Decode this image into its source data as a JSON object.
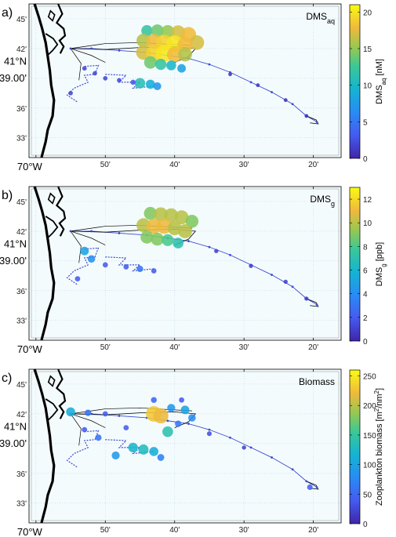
{
  "panels": [
    {
      "id": "a",
      "label": "a)",
      "title": "DMS",
      "title_sub": "aq",
      "colorbar": {
        "label_main": "DMS",
        "label_sub": "aq",
        "label_units": " [nM]",
        "min": 0,
        "max": 21,
        "ticks": [
          "0",
          "5",
          "10",
          "15",
          "20"
        ],
        "tick_values": [
          0,
          5,
          10,
          15,
          20
        ]
      },
      "value_max": 21
    },
    {
      "id": "b",
      "label": "b)",
      "title": "DMS",
      "title_sub": "g",
      "colorbar": {
        "label_main": "DMS",
        "label_sub": "g",
        "label_units": " [ppb]",
        "min": 0,
        "max": 13,
        "ticks": [
          "0",
          "2",
          "4",
          "6",
          "8",
          "10",
          "12"
        ],
        "tick_values": [
          0,
          2,
          4,
          6,
          8,
          10,
          12
        ]
      },
      "value_max": 13
    },
    {
      "id": "c",
      "label": "c)",
      "title": "Biomass",
      "title_sub": "",
      "colorbar": {
        "label_main": "Zooplankton biomass [m",
        "label_sub": "",
        "label_units": "2/nm2]",
        "min": 0,
        "max": 260,
        "ticks": [
          "0",
          "50",
          "100",
          "150",
          "200",
          "250"
        ],
        "tick_values": [
          0,
          50,
          100,
          150,
          200,
          250
        ]
      },
      "value_max": 260
    }
  ],
  "lat_ticks": [
    "45'",
    "42'",
    "39.00'",
    "36'",
    "33'"
  ],
  "lat_values": [
    45,
    42,
    39,
    36,
    33
  ],
  "lat_degree_label": "41°N",
  "lon_ticks": [
    "70°W",
    "50'",
    "40'",
    "30'",
    "20'"
  ],
  "lon_values": [
    60,
    50,
    40,
    30,
    20
  ],
  "lat_range": [
    31,
    46.5
  ],
  "lon_range": [
    61,
    16
  ],
  "colors": {
    "ocean": "#f4fbfd",
    "grid": "#bcd6e6",
    "coast": "#000000",
    "track": "#3a4ad0"
  },
  "track_points": [
    [
      55,
      42
    ],
    [
      52,
      42
    ],
    [
      48,
      41.8
    ],
    [
      44,
      41.6
    ],
    [
      41,
      41.3
    ],
    [
      38,
      41.0
    ],
    [
      35,
      40.4
    ],
    [
      32,
      39.6
    ],
    [
      29,
      38.6
    ],
    [
      26,
      37.6
    ],
    [
      23,
      36.4
    ],
    [
      21,
      35.2
    ],
    [
      19.5,
      34.6
    ]
  ],
  "bubbles_a": [
    {
      "lon": 44,
      "lat": 43.8,
      "v": 12
    },
    {
      "lon": 42.5,
      "lat": 43.8,
      "v": 14
    },
    {
      "lon": 41,
      "lat": 43.7,
      "v": 15
    },
    {
      "lon": 39.5,
      "lat": 43.6,
      "v": 17
    },
    {
      "lon": 38,
      "lat": 43.4,
      "v": 18
    },
    {
      "lon": 36.8,
      "lat": 42.6,
      "v": 17
    },
    {
      "lon": 44.5,
      "lat": 42.8,
      "v": 16
    },
    {
      "lon": 43,
      "lat": 42.7,
      "v": 18
    },
    {
      "lon": 41.5,
      "lat": 42.6,
      "v": 19
    },
    {
      "lon": 40,
      "lat": 42.5,
      "v": 20
    },
    {
      "lon": 38.5,
      "lat": 42.4,
      "v": 18
    },
    {
      "lon": 44.5,
      "lat": 41.6,
      "v": 17
    },
    {
      "lon": 43,
      "lat": 41.5,
      "v": 19
    },
    {
      "lon": 41.5,
      "lat": 41.5,
      "v": 20
    },
    {
      "lon": 40,
      "lat": 41.4,
      "v": 18
    },
    {
      "lon": 38.5,
      "lat": 41.4,
      "v": 16
    },
    {
      "lon": 43.5,
      "lat": 40.6,
      "v": 14
    },
    {
      "lon": 42,
      "lat": 40.4,
      "v": 12
    },
    {
      "lon": 40.5,
      "lat": 40.3,
      "v": 10
    },
    {
      "lon": 39,
      "lat": 40.0,
      "v": 8
    },
    {
      "lon": 45,
      "lat": 38.5,
      "v": 11
    },
    {
      "lon": 43.5,
      "lat": 38.4,
      "v": 9
    },
    {
      "lon": 42.5,
      "lat": 38.2,
      "v": 7
    },
    {
      "lon": 53,
      "lat": 40.0,
      "v": 2
    },
    {
      "lon": 51.5,
      "lat": 39.5,
      "v": 2
    },
    {
      "lon": 50,
      "lat": 39.0,
      "v": 2
    },
    {
      "lon": 48,
      "lat": 38.8,
      "v": 2
    },
    {
      "lon": 46,
      "lat": 38.6,
      "v": 3
    },
    {
      "lon": 55,
      "lat": 37.5,
      "v": 2
    },
    {
      "lon": 32,
      "lat": 39.4,
      "v": 1
    },
    {
      "lon": 28,
      "lat": 38.3,
      "v": 1
    },
    {
      "lon": 24,
      "lat": 36.8,
      "v": 1
    },
    {
      "lon": 21,
      "lat": 35.2,
      "v": 1
    }
  ],
  "bubbles_b": [
    {
      "lon": 43.5,
      "lat": 43.8,
      "v": 9
    },
    {
      "lon": 42,
      "lat": 43.7,
      "v": 10
    },
    {
      "lon": 40.5,
      "lat": 43.6,
      "v": 10
    },
    {
      "lon": 39,
      "lat": 43.4,
      "v": 10
    },
    {
      "lon": 37.5,
      "lat": 43.0,
      "v": 9
    },
    {
      "lon": 44.5,
      "lat": 42.6,
      "v": 10
    },
    {
      "lon": 43,
      "lat": 42.5,
      "v": 11
    },
    {
      "lon": 41.5,
      "lat": 42.5,
      "v": 11
    },
    {
      "lon": 40,
      "lat": 42.3,
      "v": 10
    },
    {
      "lon": 38.5,
      "lat": 42.0,
      "v": 10
    },
    {
      "lon": 44,
      "lat": 41.4,
      "v": 9
    },
    {
      "lon": 42.5,
      "lat": 41.2,
      "v": 9
    },
    {
      "lon": 41,
      "lat": 41.1,
      "v": 8
    },
    {
      "lon": 39.5,
      "lat": 40.8,
      "v": 7
    },
    {
      "lon": 53,
      "lat": 40.0,
      "v": 5
    },
    {
      "lon": 52,
      "lat": 39.2,
      "v": 4
    },
    {
      "lon": 50,
      "lat": 38.6,
      "v": 2
    },
    {
      "lon": 47,
      "lat": 38.4,
      "v": 2
    },
    {
      "lon": 45,
      "lat": 38.2,
      "v": 3
    },
    {
      "lon": 43,
      "lat": 38.0,
      "v": 2
    },
    {
      "lon": 54,
      "lat": 37.2,
      "v": 2
    },
    {
      "lon": 34,
      "lat": 40.0,
      "v": 1
    },
    {
      "lon": 29,
      "lat": 38.5,
      "v": 1
    },
    {
      "lon": 24,
      "lat": 36.9,
      "v": 1
    },
    {
      "lon": 21,
      "lat": 35.2,
      "v": 1
    }
  ],
  "bubbles_c": [
    {
      "lon": 55,
      "lat": 42.2,
      "v": 110
    },
    {
      "lon": 52.5,
      "lat": 42.1,
      "v": 60
    },
    {
      "lon": 50,
      "lat": 42.0,
      "v": 40
    },
    {
      "lon": 43,
      "lat": 42.0,
      "v": 230
    },
    {
      "lon": 42,
      "lat": 41.8,
      "v": 220
    },
    {
      "lon": 40.5,
      "lat": 42.6,
      "v": 90
    },
    {
      "lon": 38.5,
      "lat": 42.4,
      "v": 100
    },
    {
      "lon": 37.5,
      "lat": 41.6,
      "v": 80
    },
    {
      "lon": 39.5,
      "lat": 41.0,
      "v": 60
    },
    {
      "lon": 41,
      "lat": 40.2,
      "v": 140
    },
    {
      "lon": 43,
      "lat": 43.4,
      "v": 50
    },
    {
      "lon": 39,
      "lat": 43.4,
      "v": 40
    },
    {
      "lon": 46,
      "lat": 38.6,
      "v": 120
    },
    {
      "lon": 44.5,
      "lat": 38.4,
      "v": 130
    },
    {
      "lon": 43,
      "lat": 38.2,
      "v": 110
    },
    {
      "lon": 48.5,
      "lat": 37.8,
      "v": 90
    },
    {
      "lon": 51,
      "lat": 39.6,
      "v": 60
    },
    {
      "lon": 53,
      "lat": 40.4,
      "v": 40
    },
    {
      "lon": 47,
      "lat": 40.6,
      "v": 40
    },
    {
      "lon": 42,
      "lat": 37.6,
      "v": 70
    },
    {
      "lon": 35,
      "lat": 40.0,
      "v": 30
    },
    {
      "lon": 30,
      "lat": 38.6,
      "v": 20
    },
    {
      "lon": 20.5,
      "lat": 34.6,
      "v": 45
    }
  ]
}
